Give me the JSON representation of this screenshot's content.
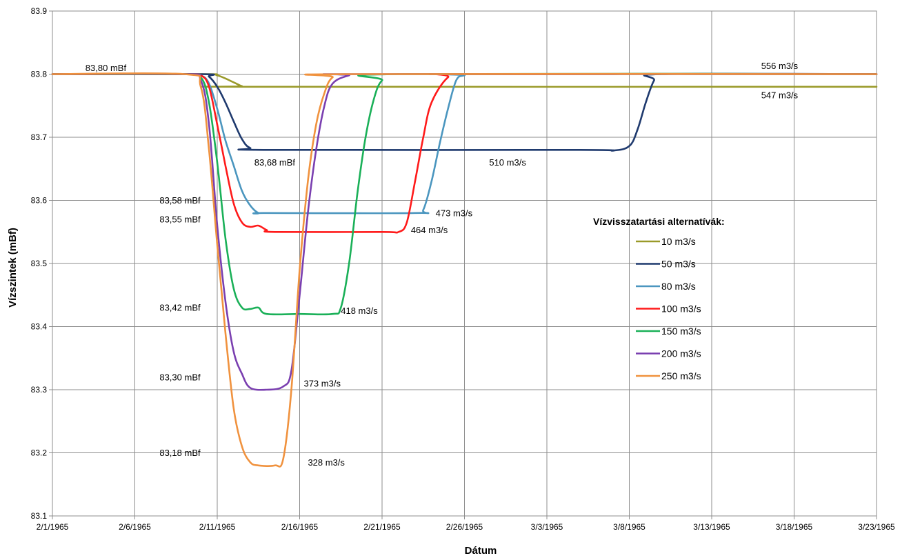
{
  "chart_data": {
    "type": "line",
    "xlabel": "Dátum",
    "ylabel": "Vízszintek (mBf)",
    "x_domain": [
      "2/1/1965",
      "3/23/1965"
    ],
    "ylim": [
      83.1,
      83.9
    ],
    "y_ticks": [
      "83.1",
      "83.2",
      "83.3",
      "83.4",
      "83.5",
      "83.6",
      "83.7",
      "83.8",
      "83.9"
    ],
    "x_ticks": [
      "2/1/1965",
      "2/6/1965",
      "2/11/1965",
      "2/16/1965",
      "2/21/1965",
      "2/26/1965",
      "3/3/1965",
      "3/8/1965",
      "3/13/1965",
      "3/18/1965",
      "3/23/1965"
    ],
    "grid": true,
    "legend": {
      "title": "Vízvisszatartási alternatívák:",
      "placement": "right"
    },
    "series": [
      {
        "name": "10 m3/s",
        "color": "#9a9a2a",
        "points": [
          [
            "2/1/1965",
            83.8
          ],
          [
            "2/10/1965",
            83.8
          ],
          [
            "2/11/1965",
            83.798
          ],
          [
            "2/12/1965",
            83.787
          ],
          [
            "2/12/1965 12:00",
            83.781
          ],
          [
            "2/13/1965",
            83.78
          ],
          [
            "3/23/1965",
            83.78
          ]
        ]
      },
      {
        "name": "50 m3/s",
        "color": "#1f3a6e",
        "points": [
          [
            "2/1/1965",
            83.8
          ],
          [
            "2/10/1965",
            83.8
          ],
          [
            "2/10/1965 12:00",
            83.796
          ],
          [
            "2/11/1965",
            83.78
          ],
          [
            "2/11/1965 12:00",
            83.755
          ],
          [
            "2/12/1965",
            83.725
          ],
          [
            "2/12/1965 12:00",
            83.697
          ],
          [
            "2/13/1965",
            83.683
          ],
          [
            "2/14/1965",
            83.68
          ],
          [
            "3/5/1965",
            83.68
          ],
          [
            "3/7/1965",
            83.679
          ],
          [
            "3/8/1965",
            83.686
          ],
          [
            "3/8/1965 12:00",
            83.712
          ],
          [
            "3/9/1965",
            83.755
          ],
          [
            "3/9/1965 12:00",
            83.79
          ],
          [
            "3/10/1965",
            83.8
          ],
          [
            "3/23/1965",
            83.8
          ]
        ]
      },
      {
        "name": "80 m3/s",
        "color": "#4b96bf",
        "points": [
          [
            "2/1/1965",
            83.8
          ],
          [
            "2/9/1965",
            83.8
          ],
          [
            "2/10/1965",
            83.798
          ],
          [
            "2/10/1965 12:00",
            83.785
          ],
          [
            "2/11/1965",
            83.745
          ],
          [
            "2/11/1965 12:00",
            83.695
          ],
          [
            "2/12/1965",
            83.655
          ],
          [
            "2/12/1965 12:00",
            83.615
          ],
          [
            "2/13/1965",
            83.592
          ],
          [
            "2/13/1965 12:00",
            83.58
          ],
          [
            "2/14/1965",
            83.58
          ],
          [
            "2/23/1965",
            83.58
          ],
          [
            "2/23/1965 12:00",
            83.585
          ],
          [
            "2/24/1965",
            83.63
          ],
          [
            "2/24/1965 12:00",
            83.69
          ],
          [
            "2/25/1965",
            83.745
          ],
          [
            "2/25/1965 12:00",
            83.79
          ],
          [
            "2/26/1965",
            83.798
          ],
          [
            "2/27/1965",
            83.8
          ],
          [
            "3/23/1965",
            83.8
          ]
        ]
      },
      {
        "name": "100 m3/s",
        "color": "#ff1a1a",
        "points": [
          [
            "2/1/1965",
            83.8
          ],
          [
            "2/9/1965",
            83.8
          ],
          [
            "2/10/1965",
            83.798
          ],
          [
            "2/10/1965 12:00",
            83.78
          ],
          [
            "2/11/1965",
            83.72
          ],
          [
            "2/11/1965 12:00",
            83.655
          ],
          [
            "2/12/1965",
            83.595
          ],
          [
            "2/12/1965 12:00",
            83.565
          ],
          [
            "2/13/1965",
            83.558
          ],
          [
            "2/13/1965 12:00",
            83.56
          ],
          [
            "2/14/1965",
            83.553
          ],
          [
            "2/14/1965 12:00",
            83.55
          ],
          [
            "2/21/1965",
            83.55
          ],
          [
            "2/22/1965",
            83.55
          ],
          [
            "2/22/1965 12:00",
            83.565
          ],
          [
            "2/23/1965",
            83.63
          ],
          [
            "2/23/1965 12:00",
            83.7
          ],
          [
            "2/24/1965",
            83.755
          ],
          [
            "2/25/1965",
            83.795
          ],
          [
            "2/26/1965",
            83.8
          ],
          [
            "3/23/1965",
            83.8
          ]
        ]
      },
      {
        "name": "150 m3/s",
        "color": "#1ab058",
        "points": [
          [
            "2/1/1965",
            83.8
          ],
          [
            "2/9/1965",
            83.8
          ],
          [
            "2/10/1965",
            83.795
          ],
          [
            "2/10/1965 12:00",
            83.755
          ],
          [
            "2/11/1965",
            83.66
          ],
          [
            "2/11/1965 12:00",
            83.54
          ],
          [
            "2/12/1965",
            83.46
          ],
          [
            "2/12/1965 12:00",
            83.43
          ],
          [
            "2/13/1965",
            83.428
          ],
          [
            "2/13/1965 12:00",
            83.43
          ],
          [
            "2/14/1965",
            83.42
          ],
          [
            "2/16/1965",
            83.42
          ],
          [
            "2/18/1965",
            83.42
          ],
          [
            "2/18/1965 12:00",
            83.43
          ],
          [
            "2/19/1965",
            83.5
          ],
          [
            "2/19/1965 12:00",
            83.61
          ],
          [
            "2/20/1965",
            83.7
          ],
          [
            "2/20/1965 12:00",
            83.76
          ],
          [
            "2/21/1965",
            83.79
          ],
          [
            "2/22/1965",
            83.8
          ],
          [
            "3/23/1965",
            83.8
          ]
        ]
      },
      {
        "name": "200 m3/s",
        "color": "#7a3fb0",
        "points": [
          [
            "2/1/1965",
            83.8
          ],
          [
            "2/9/1965",
            83.8
          ],
          [
            "2/10/1965",
            83.79
          ],
          [
            "2/10/1965 12:00",
            83.72
          ],
          [
            "2/11/1965",
            83.56
          ],
          [
            "2/11/1965 12:00",
            83.44
          ],
          [
            "2/12/1965",
            83.36
          ],
          [
            "2/12/1965 12:00",
            83.325
          ],
          [
            "2/13/1965",
            83.303
          ],
          [
            "2/14/1965",
            83.3
          ],
          [
            "2/15/1965",
            83.305
          ],
          [
            "2/15/1965 12:00",
            83.33
          ],
          [
            "2/16/1965",
            83.45
          ],
          [
            "2/16/1965 12:00",
            83.58
          ],
          [
            "2/17/1965",
            83.68
          ],
          [
            "2/17/1965 12:00",
            83.75
          ],
          [
            "2/18/1965",
            83.785
          ],
          [
            "2/19/1965",
            83.798
          ],
          [
            "2/20/1965",
            83.8
          ],
          [
            "3/23/1965",
            83.8
          ]
        ]
      },
      {
        "name": "250 m3/s",
        "color": "#f0923e",
        "points": [
          [
            "2/1/1965",
            83.8
          ],
          [
            "2/9/1965",
            83.8
          ],
          [
            "2/10/1965",
            83.78
          ],
          [
            "2/10/1965 12:00",
            83.68
          ],
          [
            "2/11/1965",
            83.53
          ],
          [
            "2/11/1965 12:00",
            83.39
          ],
          [
            "2/12/1965",
            83.27
          ],
          [
            "2/12/1965 12:00",
            83.21
          ],
          [
            "2/13/1965",
            83.185
          ],
          [
            "2/13/1965 12:00",
            83.18
          ],
          [
            "2/14/1965 12:00",
            83.18
          ],
          [
            "2/15/1965",
            83.19
          ],
          [
            "2/15/1965 12:00",
            83.3
          ],
          [
            "2/16/1965",
            83.49
          ],
          [
            "2/16/1965 12:00",
            83.63
          ],
          [
            "2/17/1965",
            83.72
          ],
          [
            "2/17/1965 12:00",
            83.77
          ],
          [
            "2/18/1965",
            83.795
          ],
          [
            "2/19/1965",
            83.8
          ],
          [
            "3/23/1965",
            83.8
          ]
        ]
      }
    ],
    "annotations": [
      {
        "text": "83,80 mBf",
        "x": "2/3/1965",
        "y": 83.805
      },
      {
        "text": "83,68 mBf",
        "x": "2/13/1965 06:00",
        "y": 83.655
      },
      {
        "text": "83,58 mBf",
        "x": "2/7/1965 12:00",
        "y": 83.595
      },
      {
        "text": "83,55 mBf",
        "x": "2/7/1965 12:00",
        "y": 83.565
      },
      {
        "text": "83,42 mBf",
        "x": "2/7/1965 12:00",
        "y": 83.425
      },
      {
        "text": "83,30 mBf",
        "x": "2/7/1965 12:00",
        "y": 83.315
      },
      {
        "text": "83,18 mBf",
        "x": "2/7/1965 12:00",
        "y": 83.195
      },
      {
        "text": "556 m3/s",
        "x": "3/16/1965",
        "y": 83.808
      },
      {
        "text": "547 m3/s",
        "x": "3/16/1965",
        "y": 83.762
      },
      {
        "text": "510 m3/s",
        "x": "2/27/1965 12:00",
        "y": 83.655
      },
      {
        "text": "473 m3/s",
        "x": "2/24/1965 06:00",
        "y": 83.575
      },
      {
        "text": "464 m3/s",
        "x": "2/22/1965 18:00",
        "y": 83.548
      },
      {
        "text": "418 m3/s",
        "x": "2/18/1965 12:00",
        "y": 83.42
      },
      {
        "text": "373 m3/s",
        "x": "2/16/1965 06:00",
        "y": 83.305
      },
      {
        "text": "328 m3/s",
        "x": "2/16/1965 12:00",
        "y": 83.18
      }
    ]
  }
}
